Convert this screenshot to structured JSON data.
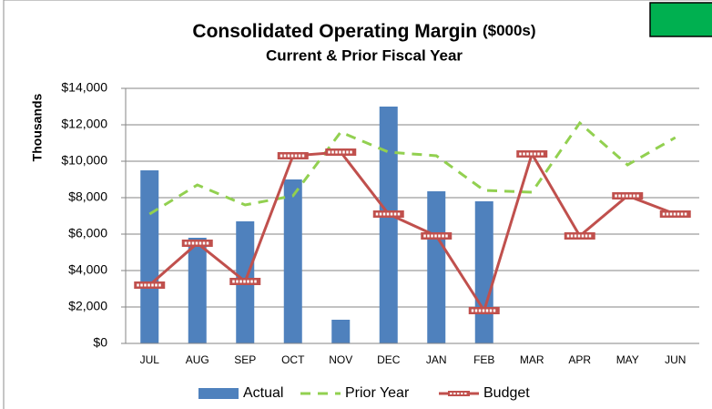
{
  "chart_data": {
    "type": "bar_line",
    "title": "Consolidated Operating Margin",
    "title_unit": "($000s)",
    "subtitle": "Current & Prior Fiscal Year",
    "y_label": "Thousands",
    "categories": [
      "JUL",
      "AUG",
      "SEP",
      "OCT",
      "NOV",
      "DEC",
      "JAN",
      "FEB",
      "MAR",
      "APR",
      "MAY",
      "JUN"
    ],
    "series": [
      {
        "name": "Actual",
        "kind": "bar",
        "color": "#4f81bd",
        "values": [
          9500,
          5800,
          6700,
          9000,
          1300,
          13000,
          8350,
          7800,
          null,
          null,
          null,
          null
        ]
      },
      {
        "name": "Prior Year",
        "kind": "dashed-line",
        "color": "#92d050",
        "values": [
          7100,
          8700,
          7600,
          8100,
          11600,
          10500,
          10300,
          8400,
          8300,
          12100,
          9800,
          11300
        ]
      },
      {
        "name": "Budget",
        "kind": "marker-line",
        "color": "#c0504d",
        "values": [
          3200,
          5500,
          3400,
          10300,
          10500,
          7100,
          5900,
          1800,
          10400,
          5900,
          8100,
          7100
        ]
      }
    ],
    "ylim": [
      0,
      14000
    ],
    "yticks": [
      {
        "value": 0,
        "label": "$0"
      },
      {
        "value": 2000,
        "label": "$2,000"
      },
      {
        "value": 4000,
        "label": "$4,000"
      },
      {
        "value": 6000,
        "label": "$6,000"
      },
      {
        "value": 8000,
        "label": "$8,000"
      },
      {
        "value": 10000,
        "label": "$10,000"
      },
      {
        "value": 12000,
        "label": "$12,000"
      },
      {
        "value": 14000,
        "label": "$14,000"
      }
    ],
    "grid": true
  }
}
